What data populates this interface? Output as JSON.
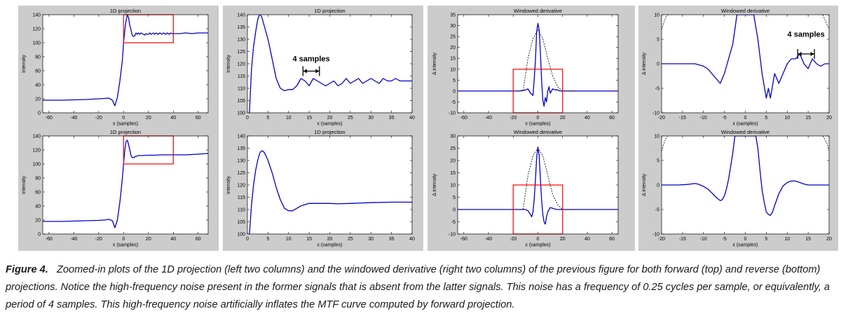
{
  "caption": {
    "label": "Figure 4.",
    "text": "Zoomed-in plots of the 1D projection (left two columns) and the windowed derivative (right two columns) of the previous figure for both forward (top) and reverse (bottom) projections. Notice the high-frequency noise present in the former signals that is absent from the latter signals. This noise has a frequency of 0.25 cycles per sample, or equivalently, a period of 4 samples. This high-frequency noise artificially inflates the MTF curve computed by forward projection."
  },
  "colors": {
    "panel_bg": "#cccccc",
    "axes_bg": "#ffffff",
    "signal": "#0000cc",
    "window": "#000000",
    "highlight_box": "#ff0000"
  },
  "chart_data": [
    {
      "type": "line",
      "title": "1D projection",
      "xlabel": "x (samples)",
      "ylabel": "intensity",
      "xlim": [
        -65,
        68
      ],
      "ylim": [
        0,
        140
      ],
      "xticks": [
        -60,
        -40,
        -20,
        0,
        20,
        40,
        60
      ],
      "yticks": [
        0,
        20,
        40,
        60,
        80,
        100,
        120,
        140
      ],
      "series": [
        {
          "x": [
            -65,
            -50,
            -40,
            -30,
            -20,
            -15,
            -12,
            -9,
            -7,
            -5,
            -3,
            -2,
            -1,
            0,
            1,
            2,
            3,
            4,
            5,
            6,
            7,
            8,
            9,
            10,
            11,
            12,
            13,
            14,
            15,
            16,
            17,
            18,
            19,
            20,
            21,
            22,
            23,
            24,
            25,
            26,
            27,
            28,
            29,
            30,
            31,
            32,
            33,
            34,
            35,
            36,
            37,
            38,
            39,
            40,
            45,
            50,
            55,
            60,
            65,
            68
          ],
          "y": [
            18,
            18,
            18.5,
            19,
            20,
            20.5,
            21,
            18,
            10,
            22,
            45,
            60,
            75,
            100,
            118,
            132,
            140,
            136,
            125,
            118,
            110,
            109,
            110,
            114,
            112,
            114,
            112,
            114,
            113,
            112,
            111,
            113,
            112,
            112,
            114,
            112,
            113,
            114,
            112,
            114,
            113,
            112,
            114,
            113,
            112,
            114,
            113,
            112,
            114,
            113,
            112,
            114,
            113,
            113,
            113,
            114,
            113,
            114,
            114,
            114
          ]
        }
      ],
      "box": {
        "x": [
          0,
          40
        ],
        "y": [
          100,
          140
        ]
      }
    },
    {
      "type": "line",
      "title": "1D projection",
      "xlabel": "x (samples)",
      "ylabel": "intensity",
      "xlim": [
        0,
        40
      ],
      "ylim": [
        100,
        140
      ],
      "xticks": [
        0,
        5,
        10,
        15,
        20,
        25,
        30,
        35,
        40
      ],
      "yticks": [
        100,
        105,
        110,
        115,
        120,
        125,
        130,
        135,
        140
      ],
      "series": [
        {
          "x": [
            0.5,
            1,
            1.5,
            2,
            2.5,
            3,
            3.5,
            4,
            5,
            6,
            7,
            8,
            9,
            10,
            11,
            12,
            13,
            14,
            15,
            16,
            17,
            18,
            19,
            20,
            21,
            22,
            23,
            24,
            25,
            26,
            27,
            28,
            29,
            30,
            31,
            32,
            33,
            34,
            35,
            36,
            37,
            38,
            39,
            40
          ],
          "y": [
            100,
            118,
            127,
            133,
            138,
            140.5,
            139,
            136,
            130,
            122,
            114,
            110,
            109,
            109.5,
            109.5,
            111,
            114,
            113,
            111,
            114,
            113,
            112,
            111,
            112,
            113,
            111,
            112,
            114,
            112,
            113,
            114,
            112,
            113,
            114,
            113,
            112,
            114,
            113,
            113,
            114,
            113,
            113,
            113,
            113
          ]
        }
      ],
      "annotations": [
        {
          "text": "4 samples",
          "x": [
            13.5,
            17.5
          ],
          "y": 117,
          "text_y": 121
        }
      ]
    },
    {
      "type": "line",
      "title": "Windowed derivative",
      "xlabel": "x (samples)",
      "ylabel": "Δ intensity",
      "xlim": [
        -65,
        65
      ],
      "ylim": [
        -10,
        35
      ],
      "xticks": [
        -60,
        -40,
        -20,
        0,
        20,
        40,
        60
      ],
      "yticks": [
        -10,
        -5,
        0,
        5,
        10,
        15,
        20,
        25,
        30,
        35
      ],
      "series": [
        {
          "name": "signal",
          "x": [
            -65,
            -40,
            -25,
            -20,
            -15,
            -10,
            -8,
            -6,
            -4,
            -3,
            -2,
            -1,
            0,
            1,
            2,
            3,
            4,
            5,
            6,
            7,
            8,
            9,
            10,
            12,
            14,
            16,
            18,
            20,
            30,
            65
          ],
          "y": [
            0,
            0,
            0,
            0,
            0,
            0.5,
            1,
            -1,
            -2,
            5,
            14,
            27,
            31,
            28,
            18,
            5,
            -4,
            -7,
            -3,
            -5,
            0,
            2,
            -1,
            1,
            0.5,
            0.5,
            0,
            0,
            0,
            0
          ]
        },
        {
          "name": "window",
          "dashed": true,
          "x": [
            -16,
            -12,
            -8,
            -4,
            0,
            4,
            8,
            12,
            16,
            20,
            25,
            30
          ],
          "y": [
            0,
            0,
            15,
            24,
            28,
            24,
            15,
            7,
            2,
            0,
            0,
            0
          ]
        }
      ],
      "box": {
        "x": [
          -20,
          20
        ],
        "y": [
          -10,
          10
        ]
      }
    },
    {
      "type": "line",
      "title": "Windowed derivative",
      "xlabel": "x (samples)",
      "ylabel": "Δ intensity",
      "xlim": [
        -20,
        20
      ],
      "ylim": [
        -10,
        10
      ],
      "xticks": [
        -20,
        -15,
        -10,
        -5,
        0,
        5,
        10,
        15,
        20
      ],
      "yticks": [
        -10,
        -5,
        0,
        5,
        10
      ],
      "series": [
        {
          "name": "signal",
          "x": [
            -20,
            -18,
            -16,
            -14,
            -12,
            -10,
            -9,
            -8,
            -7,
            -6,
            -5,
            -4,
            -3,
            -2.5,
            -2,
            2,
            3,
            4,
            5,
            5.5,
            6,
            7,
            8,
            9,
            10,
            11,
            12,
            13,
            14,
            15,
            16,
            17,
            18,
            19,
            20
          ],
          "y": [
            0,
            0,
            0,
            0,
            0,
            -0.5,
            -1,
            -2,
            -3,
            -4,
            -2,
            1,
            4,
            7,
            10,
            10,
            5,
            -2,
            -7,
            -5,
            -7,
            -2,
            -4,
            -2,
            0,
            1,
            1,
            2,
            0,
            -1,
            1,
            0,
            -0.5,
            0,
            0
          ]
        },
        {
          "name": "window",
          "dashed": true,
          "x": [
            -20,
            -19,
            -18.5
          ],
          "y": [
            7,
            9.5,
            10
          ]
        },
        {
          "name": "window",
          "dashed": true,
          "x": [
            18.5,
            19.5,
            20
          ],
          "y": [
            10,
            8,
            7
          ]
        }
      ],
      "annotations": [
        {
          "text": "4 samples",
          "x": [
            12.5,
            16.5
          ],
          "y": 2,
          "text_y": 5.5
        }
      ]
    },
    {
      "type": "line",
      "title": "1D projection",
      "xlabel": "x (samples)",
      "ylabel": "intensity",
      "xlim": [
        -65,
        68
      ],
      "ylim": [
        0,
        140
      ],
      "xticks": [
        -60,
        -40,
        -20,
        0,
        20,
        40,
        60
      ],
      "yticks": [
        0,
        20,
        40,
        60,
        80,
        100,
        120,
        140
      ],
      "series": [
        {
          "x": [
            -65,
            -50,
            -40,
            -30,
            -20,
            -15,
            -12,
            -9,
            -7,
            -5,
            -3,
            -2,
            -1,
            0,
            1,
            2,
            3,
            4,
            5,
            6,
            7,
            8,
            9,
            10,
            12,
            15,
            20,
            25,
            30,
            40,
            50,
            60,
            68
          ],
          "y": [
            18,
            18,
            18.5,
            19,
            19.5,
            20,
            21,
            19,
            9,
            20,
            45,
            62,
            80,
            100,
            120,
            132,
            134,
            128,
            120,
            112,
            109,
            109,
            110,
            111,
            112,
            112,
            112.5,
            112.5,
            113,
            113,
            113,
            114,
            115
          ]
        }
      ],
      "box": {
        "x": [
          0,
          40
        ],
        "y": [
          100,
          140
        ]
      }
    },
    {
      "type": "line",
      "title": "1D projection",
      "xlabel": "x (samples)",
      "ylabel": "intensity",
      "xlim": [
        0,
        40
      ],
      "ylim": [
        100,
        140
      ],
      "xticks": [
        0,
        5,
        10,
        15,
        20,
        25,
        30,
        35,
        40
      ],
      "yticks": [
        100,
        105,
        110,
        115,
        120,
        125,
        130,
        135,
        140
      ],
      "series": [
        {
          "x": [
            0.5,
            1,
            1.5,
            2,
            2.5,
            3,
            3.5,
            4,
            4.5,
            5,
            6,
            7,
            8,
            9,
            10,
            11,
            12,
            13,
            14,
            15,
            16,
            18,
            20,
            22,
            25,
            30,
            35,
            40
          ],
          "y": [
            100,
            112,
            120,
            126,
            130,
            133,
            134,
            133.5,
            132,
            130,
            125,
            119,
            114,
            110.5,
            109.5,
            109.5,
            110.5,
            111.5,
            112,
            112.5,
            112.5,
            112.5,
            112.5,
            112.3,
            112.5,
            112.8,
            113,
            113
          ]
        }
      ]
    },
    {
      "type": "line",
      "title": "Windowed derivative",
      "xlabel": "x (samples)",
      "ylabel": "Δ intensity",
      "xlim": [
        -65,
        65
      ],
      "ylim": [
        -10,
        30
      ],
      "xticks": [
        -60,
        -40,
        -20,
        0,
        20,
        40,
        60
      ],
      "yticks": [
        -10,
        -5,
        0,
        5,
        10,
        15,
        20,
        25,
        30
      ],
      "series": [
        {
          "name": "signal",
          "x": [
            -65,
            -30,
            -15,
            -10,
            -8,
            -6,
            -5,
            -4,
            -3,
            -2,
            -1,
            0,
            1,
            2,
            3,
            4,
            5,
            6,
            7,
            8,
            10,
            12,
            15,
            30,
            65
          ],
          "y": [
            0,
            0,
            0,
            0,
            -0.5,
            -2,
            -3,
            -1,
            4,
            12,
            21,
            25.5,
            22,
            13,
            4,
            -2,
            -5,
            -6,
            -3,
            -1,
            0.8,
            0.5,
            0,
            0,
            0
          ]
        },
        {
          "name": "window",
          "dashed": true,
          "x": [
            -16,
            -12,
            -8,
            -4,
            0,
            4,
            8,
            12,
            16,
            20,
            25,
            30
          ],
          "y": [
            0,
            0,
            14,
            22,
            25,
            22,
            14,
            6,
            2,
            0,
            0,
            0
          ]
        }
      ],
      "box": {
        "x": [
          -20,
          20
        ],
        "y": [
          -10,
          10
        ]
      }
    },
    {
      "type": "line",
      "title": "Windowed derivative",
      "xlabel": "x (samples)",
      "ylabel": "Δ intensity",
      "xlim": [
        -20,
        20
      ],
      "ylim": [
        -10,
        10
      ],
      "xticks": [
        -20,
        -15,
        -10,
        -5,
        0,
        5,
        10,
        15,
        20
      ],
      "yticks": [
        -10,
        -5,
        0,
        5,
        10
      ],
      "series": [
        {
          "name": "signal",
          "x": [
            -20,
            -18,
            -16,
            -14,
            -13,
            -12,
            -11,
            -10,
            -9,
            -8,
            -7,
            -6,
            -5.5,
            -5,
            -4.5,
            -4,
            -3.5,
            -3,
            -2.5,
            2.5,
            3,
            3.5,
            4,
            4.5,
            5,
            5.5,
            6,
            6.5,
            7,
            8,
            9,
            10,
            11,
            12,
            13,
            14,
            15,
            16,
            17,
            18,
            20
          ],
          "y": [
            0,
            0,
            0,
            0.1,
            0.2,
            0.3,
            0.1,
            -0.3,
            -0.8,
            -1.6,
            -2.5,
            -3.2,
            -3.0,
            -2.2,
            -0.8,
            1.2,
            3.8,
            6.5,
            10,
            10,
            7.5,
            3,
            -1,
            -3.5,
            -5.5,
            -6,
            -6.2,
            -5.5,
            -4.2,
            -1.8,
            -0.2,
            0.5,
            0.8,
            0.8,
            0.5,
            0.2,
            0,
            0,
            0,
            0,
            0
          ]
        },
        {
          "name": "window",
          "dashed": true,
          "x": [
            -20,
            -19,
            -18.5
          ],
          "y": [
            7,
            9.5,
            10
          ]
        },
        {
          "name": "window",
          "dashed": true,
          "x": [
            18.5,
            19.5,
            20
          ],
          "y": [
            10,
            8.5,
            7
          ]
        }
      ]
    }
  ]
}
